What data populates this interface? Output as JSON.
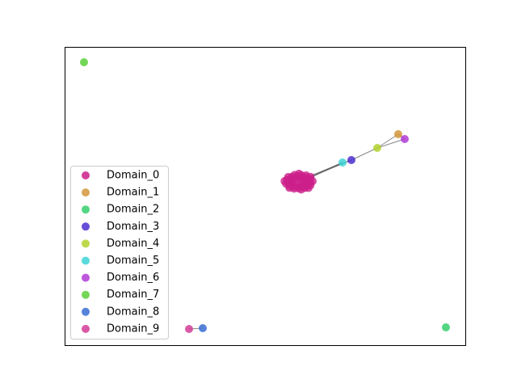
{
  "chart_data": {
    "type": "network",
    "legend": "center left",
    "series": [
      {
        "name": "Domain_0",
        "color": "#cc1f8a"
      },
      {
        "name": "Domain_1",
        "color": "#d4963a"
      },
      {
        "name": "Domain_2",
        "color": "#36cf6c"
      },
      {
        "name": "Domain_3",
        "color": "#4b2fd0"
      },
      {
        "name": "Domain_4",
        "color": "#b3d22e"
      },
      {
        "name": "Domain_5",
        "color": "#3dd3d6"
      },
      {
        "name": "Domain_6",
        "color": "#b23ad6"
      },
      {
        "name": "Domain_7",
        "color": "#5ccf3a"
      },
      {
        "name": "Domain_8",
        "color": "#3a6ed4"
      },
      {
        "name": "Domain_9",
        "color": "#d43c98"
      }
    ]
  }
}
